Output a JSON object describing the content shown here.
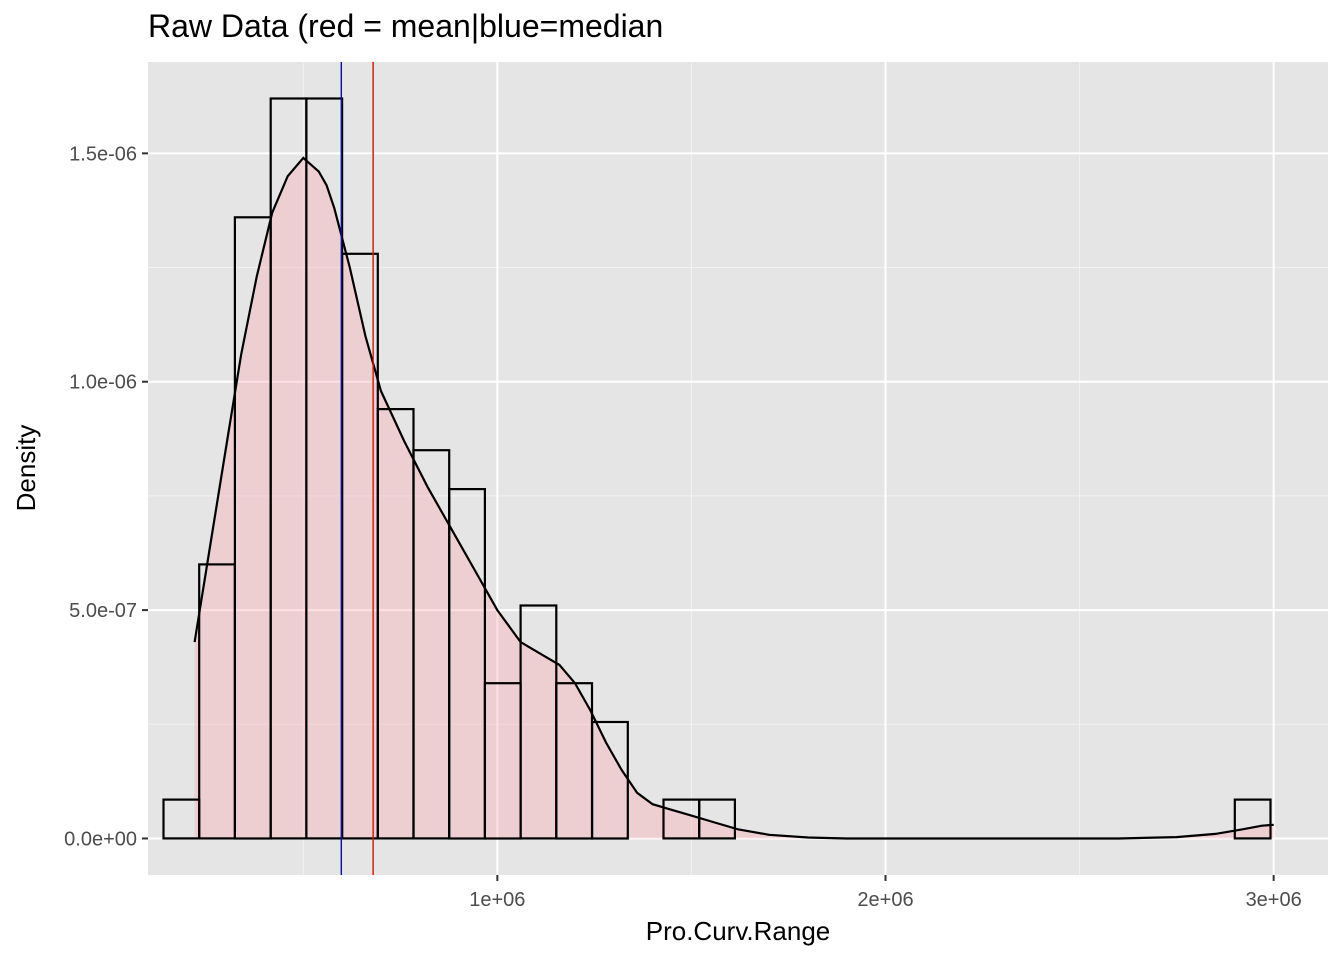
{
  "chart_data": {
    "type": "histogram",
    "title": "Raw Data (red = mean|blue=median",
    "xlabel": "Pro.Curv.Range",
    "ylabel": "Density",
    "xlim": [
      100000,
      3140000
    ],
    "ylim": [
      -8e-08,
      1.7e-06
    ],
    "x_ticks": [
      {
        "value": 1000000,
        "label": "1e+06"
      },
      {
        "value": 2000000,
        "label": "2e+06"
      },
      {
        "value": 3000000,
        "label": "3e+06"
      }
    ],
    "y_ticks": [
      {
        "value": 0,
        "label": "0.0e+00"
      },
      {
        "value": 5e-07,
        "label": "5.0e-07"
      },
      {
        "value": 1e-06,
        "label": "1.0e-06"
      },
      {
        "value": 1.5e-06,
        "label": "1.5e-06"
      }
    ],
    "x_minor_gridlines": [
      500000,
      1500000,
      2500000
    ],
    "y_minor_gridlines": [
      2.5e-07,
      7.5e-07,
      1.25e-06
    ],
    "grid": true,
    "bins": [
      {
        "x0": 140000,
        "x1": 232000,
        "density": 8.5e-08
      },
      {
        "x0": 232000,
        "x1": 324000,
        "density": 6e-07
      },
      {
        "x0": 324000,
        "x1": 416000,
        "density": 1.36e-06
      },
      {
        "x0": 416000,
        "x1": 508000,
        "density": 1.62e-06
      },
      {
        "x0": 508000,
        "x1": 600000,
        "density": 1.62e-06
      },
      {
        "x0": 600000,
        "x1": 692000,
        "density": 1.28e-06
      },
      {
        "x0": 692000,
        "x1": 784000,
        "density": 9.4e-07
      },
      {
        "x0": 784000,
        "x1": 876000,
        "density": 8.5e-07
      },
      {
        "x0": 876000,
        "x1": 968000,
        "density": 7.65e-07
      },
      {
        "x0": 968000,
        "x1": 1060000,
        "density": 3.4e-07
      },
      {
        "x0": 1060000,
        "x1": 1152000,
        "density": 5.1e-07
      },
      {
        "x0": 1152000,
        "x1": 1244000,
        "density": 3.4e-07
      },
      {
        "x0": 1244000,
        "x1": 1336000,
        "density": 2.55e-07
      },
      {
        "x0": 1336000,
        "x1": 1428000,
        "density": 0.0
      },
      {
        "x0": 1428000,
        "x1": 1520000,
        "density": 8.5e-08
      },
      {
        "x0": 1520000,
        "x1": 1612000,
        "density": 8.5e-08
      },
      {
        "x0": 2900000,
        "x1": 2992000,
        "density": 8.5e-08
      }
    ],
    "density_curve": {
      "x": [
        220000,
        260000,
        300000,
        340000,
        380000,
        420000,
        460000,
        500000,
        540000,
        560000,
        580000,
        620000,
        660000,
        700000,
        760000,
        820000,
        880000,
        940000,
        1000000,
        1060000,
        1120000,
        1160000,
        1200000,
        1240000,
        1280000,
        1320000,
        1360000,
        1400000,
        1440000,
        1500000,
        1560000,
        1620000,
        1700000,
        1800000,
        1900000,
        2000000,
        2200000,
        2400000,
        2600000,
        2750000,
        2850000,
        2920000,
        2970000,
        3000000
      ],
      "y": [
        4.3e-07,
        6.4e-07,
        8.5e-07,
        1.06e-06,
        1.23e-06,
        1.37e-06,
        1.45e-06,
        1.49e-06,
        1.46e-06,
        1.43e-06,
        1.38e-06,
        1.25e-06,
        1.1e-06,
        9.8e-07,
        8.7e-07,
        7.7e-07,
        6.8e-07,
        5.9e-07,
        5e-07,
        4.3e-07,
        4e-07,
        3.8e-07,
        3.4e-07,
        2.8e-07,
        2.1e-07,
        1.5e-07,
        1e-07,
        7.5e-08,
        6.5e-08,
        5e-08,
        3.5e-08,
        2e-08,
        8e-09,
        2e-09,
        0.0,
        0.0,
        0.0,
        0.0,
        0.0,
        3e-09,
        1e-08,
        2e-08,
        2.8e-08,
        3e-08
      ]
    },
    "reference_lines": [
      {
        "label": "median",
        "x": 598000,
        "color": "#0000ff"
      },
      {
        "label": "mean",
        "x": 680000,
        "color": "#ff0000"
      }
    ],
    "colors": {
      "panel_background": "#e5e5e5",
      "grid_major": "#ffffff",
      "grid_minor": "#f2f2f2",
      "bar_fill": "#ffffff",
      "bar_outline": "#000000",
      "density_fill": "#ff9aa6",
      "density_line": "#000000"
    }
  }
}
